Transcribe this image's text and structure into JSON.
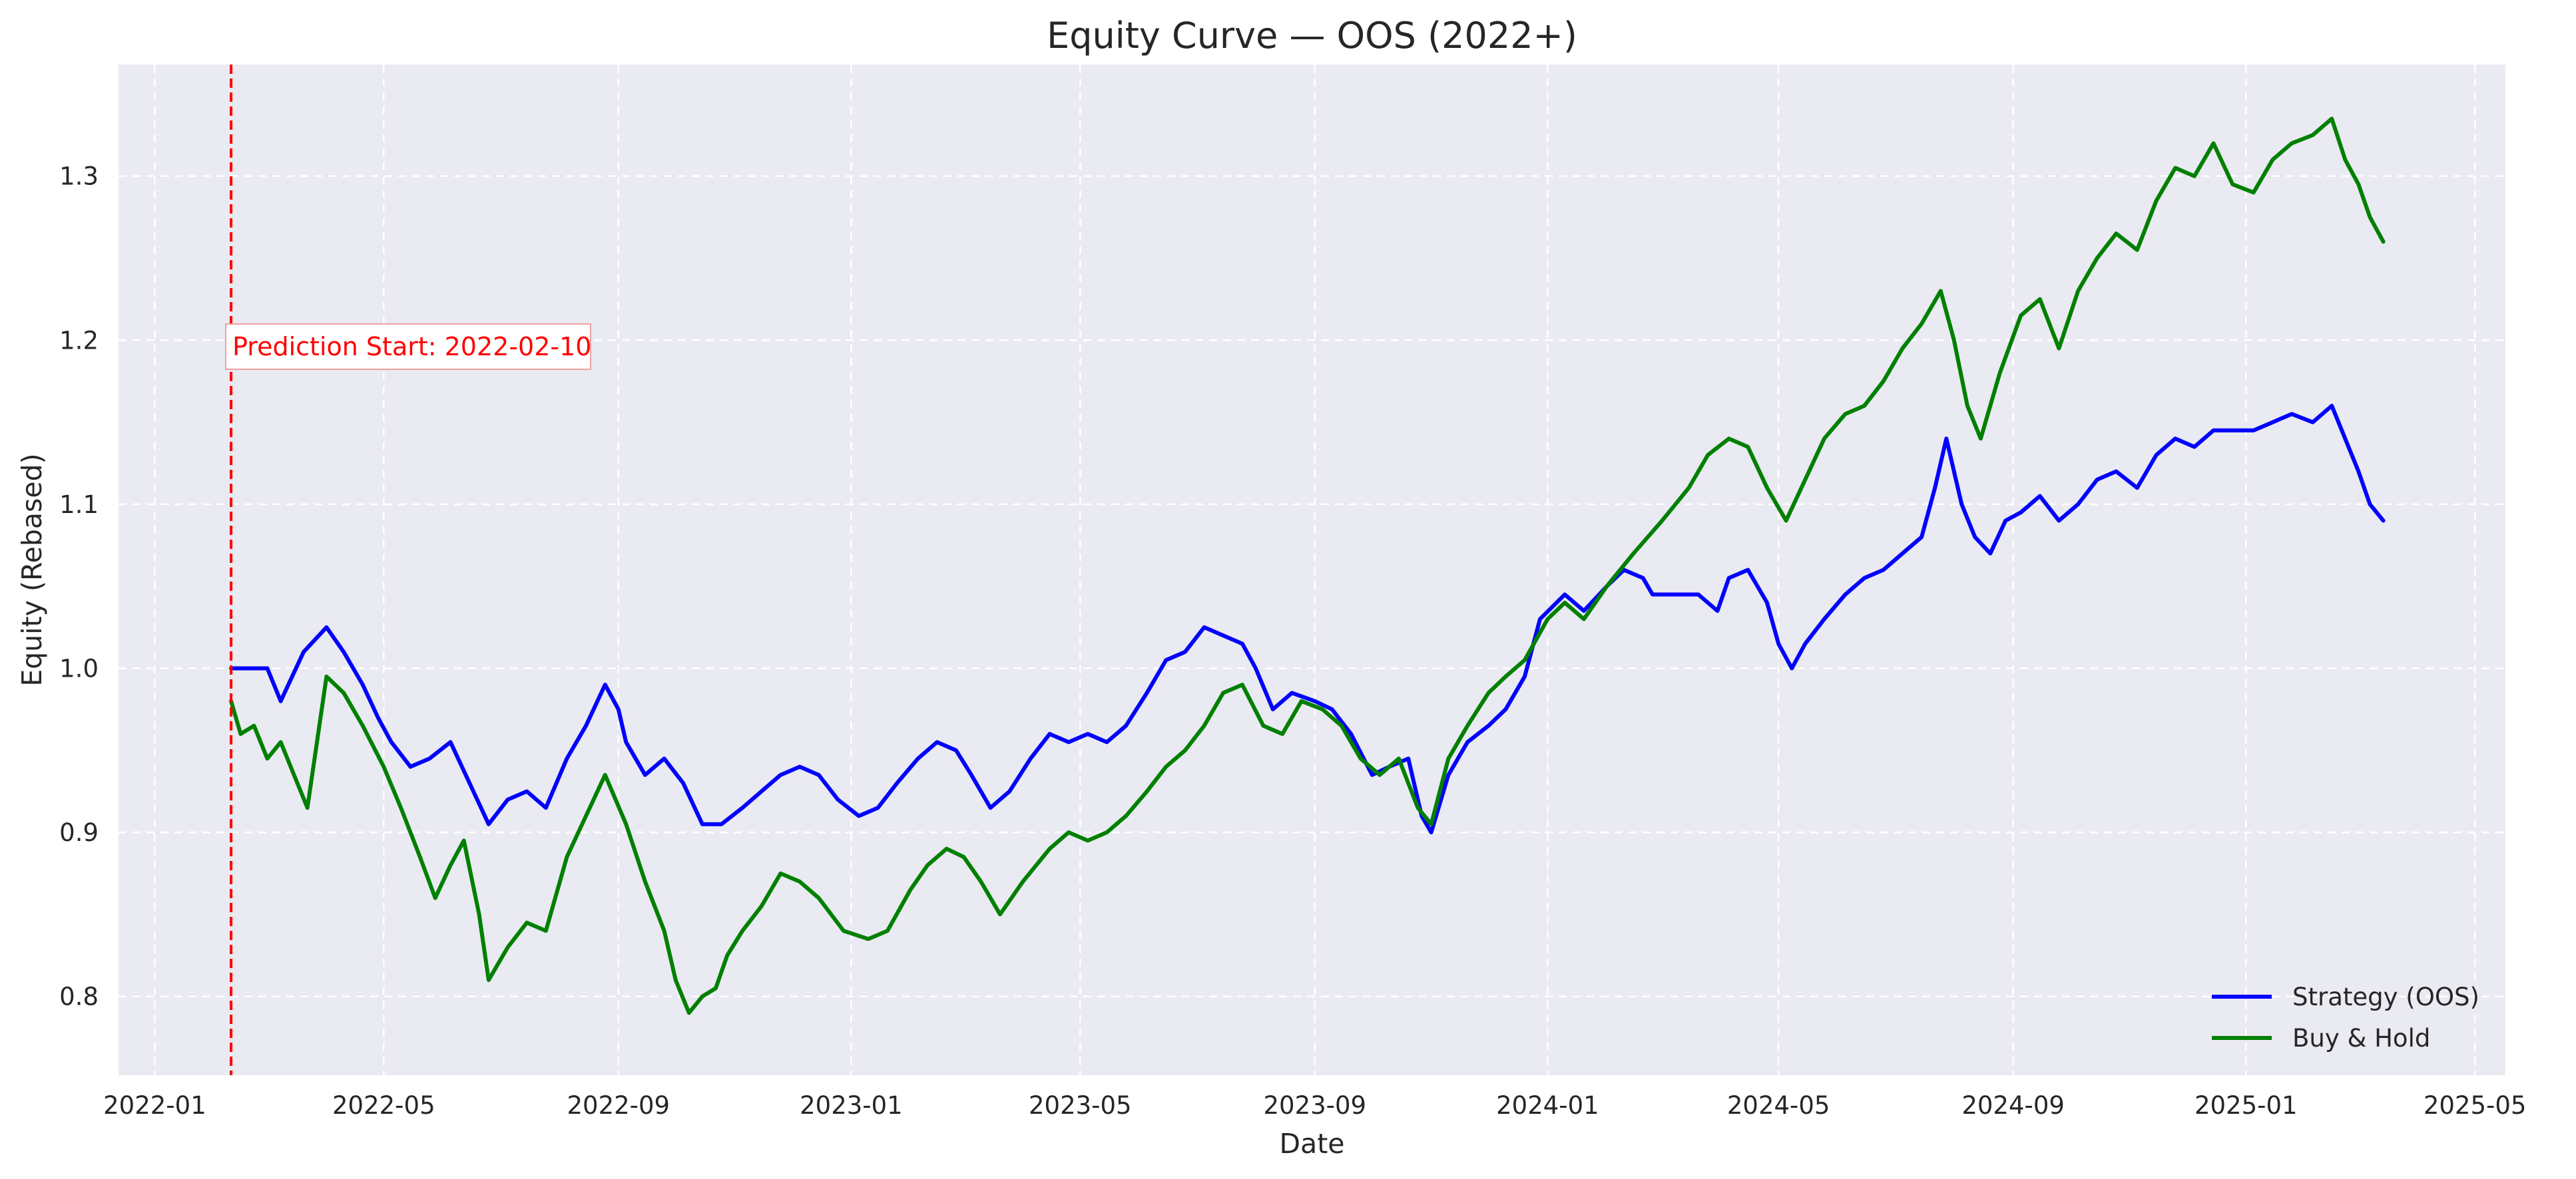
{
  "chart_data": {
    "type": "line",
    "title": "Equity Curve — OOS (2022+)",
    "xlabel": "Date",
    "ylabel": "Equity (Rebased)",
    "x_ticks": [
      "2022-01",
      "2022-05",
      "2022-09",
      "2023-01",
      "2023-05",
      "2023-09",
      "2024-01",
      "2024-05",
      "2024-09",
      "2025-01",
      "2025-05"
    ],
    "y_ticks": [
      "0.8",
      "0.9",
      "1.0",
      "1.1",
      "1.2",
      "1.3"
    ],
    "xlim": [
      "2021-12-13",
      "2025-05-17"
    ],
    "ylim": [
      0.752,
      1.368
    ],
    "grid": true,
    "background_color": "#eaeaf2",
    "legend_position": "lower right",
    "annotation": {
      "text": "Prediction Start: 2022-02-10",
      "x": "2022-02-10",
      "line_style": "dashed",
      "color": "#ff0000"
    },
    "series": [
      {
        "name": "Strategy (OOS)",
        "color": "#0000ff",
        "points": [
          [
            "2022-02-10",
            1.0
          ],
          [
            "2022-03-01",
            1.0
          ],
          [
            "2022-03-08",
            0.98
          ],
          [
            "2022-03-20",
            1.01
          ],
          [
            "2022-04-01",
            1.025
          ],
          [
            "2022-04-10",
            1.01
          ],
          [
            "2022-04-20",
            0.99
          ],
          [
            "2022-04-28",
            0.97
          ],
          [
            "2022-05-05",
            0.955
          ],
          [
            "2022-05-15",
            0.94
          ],
          [
            "2022-05-25",
            0.945
          ],
          [
            "2022-06-05",
            0.955
          ],
          [
            "2022-06-15",
            0.93
          ],
          [
            "2022-06-25",
            0.905
          ],
          [
            "2022-07-05",
            0.92
          ],
          [
            "2022-07-15",
            0.925
          ],
          [
            "2022-07-25",
            0.915
          ],
          [
            "2022-08-05",
            0.945
          ],
          [
            "2022-08-15",
            0.965
          ],
          [
            "2022-08-25",
            0.99
          ],
          [
            "2022-09-01",
            0.975
          ],
          [
            "2022-09-05",
            0.955
          ],
          [
            "2022-09-15",
            0.935
          ],
          [
            "2022-09-25",
            0.945
          ],
          [
            "2022-10-05",
            0.93
          ],
          [
            "2022-10-15",
            0.905
          ],
          [
            "2022-10-25",
            0.905
          ],
          [
            "2022-11-05",
            0.915
          ],
          [
            "2022-11-15",
            0.925
          ],
          [
            "2022-11-25",
            0.935
          ],
          [
            "2022-12-05",
            0.94
          ],
          [
            "2022-12-15",
            0.935
          ],
          [
            "2022-12-25",
            0.92
          ],
          [
            "2023-01-05",
            0.91
          ],
          [
            "2023-01-15",
            0.915
          ],
          [
            "2023-01-25",
            0.93
          ],
          [
            "2023-02-05",
            0.945
          ],
          [
            "2023-02-15",
            0.955
          ],
          [
            "2023-02-25",
            0.95
          ],
          [
            "2023-03-05",
            0.935
          ],
          [
            "2023-03-15",
            0.915
          ],
          [
            "2023-03-25",
            0.925
          ],
          [
            "2023-04-05",
            0.945
          ],
          [
            "2023-04-15",
            0.96
          ],
          [
            "2023-04-25",
            0.955
          ],
          [
            "2023-05-05",
            0.96
          ],
          [
            "2023-05-15",
            0.955
          ],
          [
            "2023-05-25",
            0.965
          ],
          [
            "2023-06-05",
            0.985
          ],
          [
            "2023-06-15",
            1.005
          ],
          [
            "2023-06-25",
            1.01
          ],
          [
            "2023-07-05",
            1.025
          ],
          [
            "2023-07-15",
            1.02
          ],
          [
            "2023-07-25",
            1.015
          ],
          [
            "2023-08-01",
            1.0
          ],
          [
            "2023-08-10",
            0.975
          ],
          [
            "2023-08-20",
            0.985
          ],
          [
            "2023-09-01",
            0.98
          ],
          [
            "2023-09-10",
            0.975
          ],
          [
            "2023-09-20",
            0.96
          ],
          [
            "2023-10-01",
            0.935
          ],
          [
            "2023-10-10",
            0.94
          ],
          [
            "2023-10-20",
            0.945
          ],
          [
            "2023-10-27",
            0.91
          ],
          [
            "2023-11-01",
            0.9
          ],
          [
            "2023-11-10",
            0.935
          ],
          [
            "2023-11-20",
            0.955
          ],
          [
            "2023-12-01",
            0.965
          ],
          [
            "2023-12-10",
            0.975
          ],
          [
            "2023-12-20",
            0.995
          ],
          [
            "2023-12-28",
            1.03
          ],
          [
            "2024-01-10",
            1.045
          ],
          [
            "2024-01-20",
            1.035
          ],
          [
            "2024-02-01",
            1.05
          ],
          [
            "2024-02-10",
            1.06
          ],
          [
            "2024-02-20",
            1.055
          ],
          [
            "2024-02-25",
            1.045
          ],
          [
            "2024-03-01",
            1.045
          ],
          [
            "2024-03-20",
            1.045
          ],
          [
            "2024-03-30",
            1.035
          ],
          [
            "2024-04-05",
            1.055
          ],
          [
            "2024-04-15",
            1.06
          ],
          [
            "2024-04-25",
            1.04
          ],
          [
            "2024-05-01",
            1.015
          ],
          [
            "2024-05-08",
            1.0
          ],
          [
            "2024-05-15",
            1.015
          ],
          [
            "2024-05-25",
            1.03
          ],
          [
            "2024-06-05",
            1.045
          ],
          [
            "2024-06-15",
            1.055
          ],
          [
            "2024-06-25",
            1.06
          ],
          [
            "2024-07-05",
            1.07
          ],
          [
            "2024-07-15",
            1.08
          ],
          [
            "2024-07-22",
            1.11
          ],
          [
            "2024-07-28",
            1.14
          ],
          [
            "2024-08-05",
            1.1
          ],
          [
            "2024-08-12",
            1.08
          ],
          [
            "2024-08-20",
            1.07
          ],
          [
            "2024-08-28",
            1.09
          ],
          [
            "2024-09-05",
            1.095
          ],
          [
            "2024-09-15",
            1.105
          ],
          [
            "2024-09-25",
            1.09
          ],
          [
            "2024-10-05",
            1.1
          ],
          [
            "2024-10-15",
            1.115
          ],
          [
            "2024-10-25",
            1.12
          ],
          [
            "2024-11-05",
            1.11
          ],
          [
            "2024-11-15",
            1.13
          ],
          [
            "2024-11-25",
            1.14
          ],
          [
            "2024-12-05",
            1.135
          ],
          [
            "2024-12-15",
            1.145
          ],
          [
            "2024-12-25",
            1.145
          ],
          [
            "2025-01-05",
            1.145
          ],
          [
            "2025-01-15",
            1.15
          ],
          [
            "2025-01-25",
            1.155
          ],
          [
            "2025-02-05",
            1.15
          ],
          [
            "2025-02-15",
            1.16
          ],
          [
            "2025-02-22",
            1.14
          ],
          [
            "2025-03-01",
            1.12
          ],
          [
            "2025-03-07",
            1.1
          ],
          [
            "2025-03-14",
            1.09
          ]
        ]
      },
      {
        "name": "Buy & Hold",
        "color": "#008000",
        "points": [
          [
            "2022-02-10",
            0.98
          ],
          [
            "2022-02-15",
            0.96
          ],
          [
            "2022-02-22",
            0.965
          ],
          [
            "2022-03-01",
            0.945
          ],
          [
            "2022-03-08",
            0.955
          ],
          [
            "2022-03-15",
            0.935
          ],
          [
            "2022-03-22",
            0.915
          ],
          [
            "2022-04-01",
            0.995
          ],
          [
            "2022-04-10",
            0.985
          ],
          [
            "2022-04-20",
            0.965
          ],
          [
            "2022-05-01",
            0.94
          ],
          [
            "2022-05-10",
            0.915
          ],
          [
            "2022-05-20",
            0.885
          ],
          [
            "2022-05-28",
            0.86
          ],
          [
            "2022-06-05",
            0.88
          ],
          [
            "2022-06-12",
            0.895
          ],
          [
            "2022-06-20",
            0.85
          ],
          [
            "2022-06-25",
            0.81
          ],
          [
            "2022-07-05",
            0.83
          ],
          [
            "2022-07-15",
            0.845
          ],
          [
            "2022-07-25",
            0.84
          ],
          [
            "2022-08-05",
            0.885
          ],
          [
            "2022-08-15",
            0.91
          ],
          [
            "2022-08-25",
            0.935
          ],
          [
            "2022-09-05",
            0.905
          ],
          [
            "2022-09-15",
            0.87
          ],
          [
            "2022-09-25",
            0.84
          ],
          [
            "2022-10-01",
            0.81
          ],
          [
            "2022-10-08",
            0.79
          ],
          [
            "2022-10-15",
            0.8
          ],
          [
            "2022-10-22",
            0.805
          ],
          [
            "2022-10-28",
            0.825
          ],
          [
            "2022-11-05",
            0.84
          ],
          [
            "2022-11-15",
            0.855
          ],
          [
            "2022-11-25",
            0.875
          ],
          [
            "2022-12-05",
            0.87
          ],
          [
            "2022-12-15",
            0.86
          ],
          [
            "2022-12-28",
            0.84
          ],
          [
            "2023-01-10",
            0.835
          ],
          [
            "2023-01-20",
            0.84
          ],
          [
            "2023-02-01",
            0.865
          ],
          [
            "2023-02-10",
            0.88
          ],
          [
            "2023-02-20",
            0.89
          ],
          [
            "2023-03-01",
            0.885
          ],
          [
            "2023-03-10",
            0.87
          ],
          [
            "2023-03-20",
            0.85
          ],
          [
            "2023-04-01",
            0.87
          ],
          [
            "2023-04-15",
            0.89
          ],
          [
            "2023-04-25",
            0.9
          ],
          [
            "2023-05-05",
            0.895
          ],
          [
            "2023-05-15",
            0.9
          ],
          [
            "2023-05-25",
            0.91
          ],
          [
            "2023-06-05",
            0.925
          ],
          [
            "2023-06-15",
            0.94
          ],
          [
            "2023-06-25",
            0.95
          ],
          [
            "2023-07-05",
            0.965
          ],
          [
            "2023-07-15",
            0.985
          ],
          [
            "2023-07-25",
            0.99
          ],
          [
            "2023-08-05",
            0.965
          ],
          [
            "2023-08-15",
            0.96
          ],
          [
            "2023-08-25",
            0.98
          ],
          [
            "2023-09-05",
            0.975
          ],
          [
            "2023-09-15",
            0.965
          ],
          [
            "2023-09-25",
            0.945
          ],
          [
            "2023-10-05",
            0.935
          ],
          [
            "2023-10-15",
            0.945
          ],
          [
            "2023-10-25",
            0.915
          ],
          [
            "2023-11-01",
            0.905
          ],
          [
            "2023-11-10",
            0.945
          ],
          [
            "2023-11-20",
            0.965
          ],
          [
            "2023-12-01",
            0.985
          ],
          [
            "2023-12-10",
            0.995
          ],
          [
            "2023-12-20",
            1.005
          ],
          [
            "2024-01-01",
            1.03
          ],
          [
            "2024-01-10",
            1.04
          ],
          [
            "2024-01-20",
            1.03
          ],
          [
            "2024-02-01",
            1.05
          ],
          [
            "2024-02-15",
            1.07
          ],
          [
            "2024-03-01",
            1.09
          ],
          [
            "2024-03-15",
            1.11
          ],
          [
            "2024-03-25",
            1.13
          ],
          [
            "2024-04-05",
            1.14
          ],
          [
            "2024-04-15",
            1.135
          ],
          [
            "2024-04-25",
            1.11
          ],
          [
            "2024-05-05",
            1.09
          ],
          [
            "2024-05-15",
            1.115
          ],
          [
            "2024-05-25",
            1.14
          ],
          [
            "2024-06-05",
            1.155
          ],
          [
            "2024-06-15",
            1.16
          ],
          [
            "2024-06-25",
            1.175
          ],
          [
            "2024-07-05",
            1.195
          ],
          [
            "2024-07-15",
            1.21
          ],
          [
            "2024-07-25",
            1.23
          ],
          [
            "2024-08-01",
            1.2
          ],
          [
            "2024-08-08",
            1.16
          ],
          [
            "2024-08-15",
            1.14
          ],
          [
            "2024-08-25",
            1.18
          ],
          [
            "2024-09-05",
            1.215
          ],
          [
            "2024-09-15",
            1.225
          ],
          [
            "2024-09-25",
            1.195
          ],
          [
            "2024-10-05",
            1.23
          ],
          [
            "2024-10-15",
            1.25
          ],
          [
            "2024-10-25",
            1.265
          ],
          [
            "2024-11-05",
            1.255
          ],
          [
            "2024-11-15",
            1.285
          ],
          [
            "2024-11-25",
            1.305
          ],
          [
            "2024-12-05",
            1.3
          ],
          [
            "2024-12-15",
            1.32
          ],
          [
            "2024-12-25",
            1.295
          ],
          [
            "2025-01-05",
            1.29
          ],
          [
            "2025-01-15",
            1.31
          ],
          [
            "2025-01-25",
            1.32
          ],
          [
            "2025-02-05",
            1.325
          ],
          [
            "2025-02-15",
            1.335
          ],
          [
            "2025-02-22",
            1.31
          ],
          [
            "2025-03-01",
            1.295
          ],
          [
            "2025-03-07",
            1.275
          ],
          [
            "2025-03-14",
            1.26
          ]
        ]
      }
    ]
  }
}
